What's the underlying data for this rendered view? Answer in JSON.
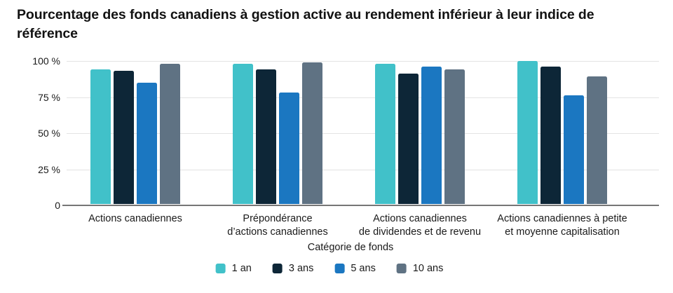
{
  "title": "Pourcentage des fonds canadiens à gestion active au rendement inférieur à leur indice de référence",
  "chart_data": {
    "type": "bar",
    "title": "Pourcentage des fonds canadiens à gestion active au rendement inférieur à leur indice de référence",
    "xlabel": "Catégorie de fonds",
    "ylabel": "",
    "ylim": [
      0,
      100
    ],
    "yticks": [
      "0",
      "25 %",
      "50 %",
      "75 %",
      "100 %"
    ],
    "grid": true,
    "legend_position": "bottom",
    "categories": [
      "Actions canadiennes",
      "Prépondérance\nd’actions canadiennes",
      "Actions canadiennes\nde dividendes et de revenu",
      "Actions canadiennes à petite\net moyenne capitalisation"
    ],
    "series": [
      {
        "name": "1 an",
        "color": "#41C1C9",
        "values": [
          94,
          98,
          98,
          100
        ]
      },
      {
        "name": "3 ans",
        "color": "#0D2637",
        "values": [
          93,
          94,
          91,
          96
        ]
      },
      {
        "name": "5 ans",
        "color": "#1B77C1",
        "values": [
          85,
          78,
          96,
          76
        ]
      },
      {
        "name": "10 ans",
        "color": "#5F7283",
        "values": [
          98,
          99,
          94,
          89
        ]
      }
    ]
  }
}
